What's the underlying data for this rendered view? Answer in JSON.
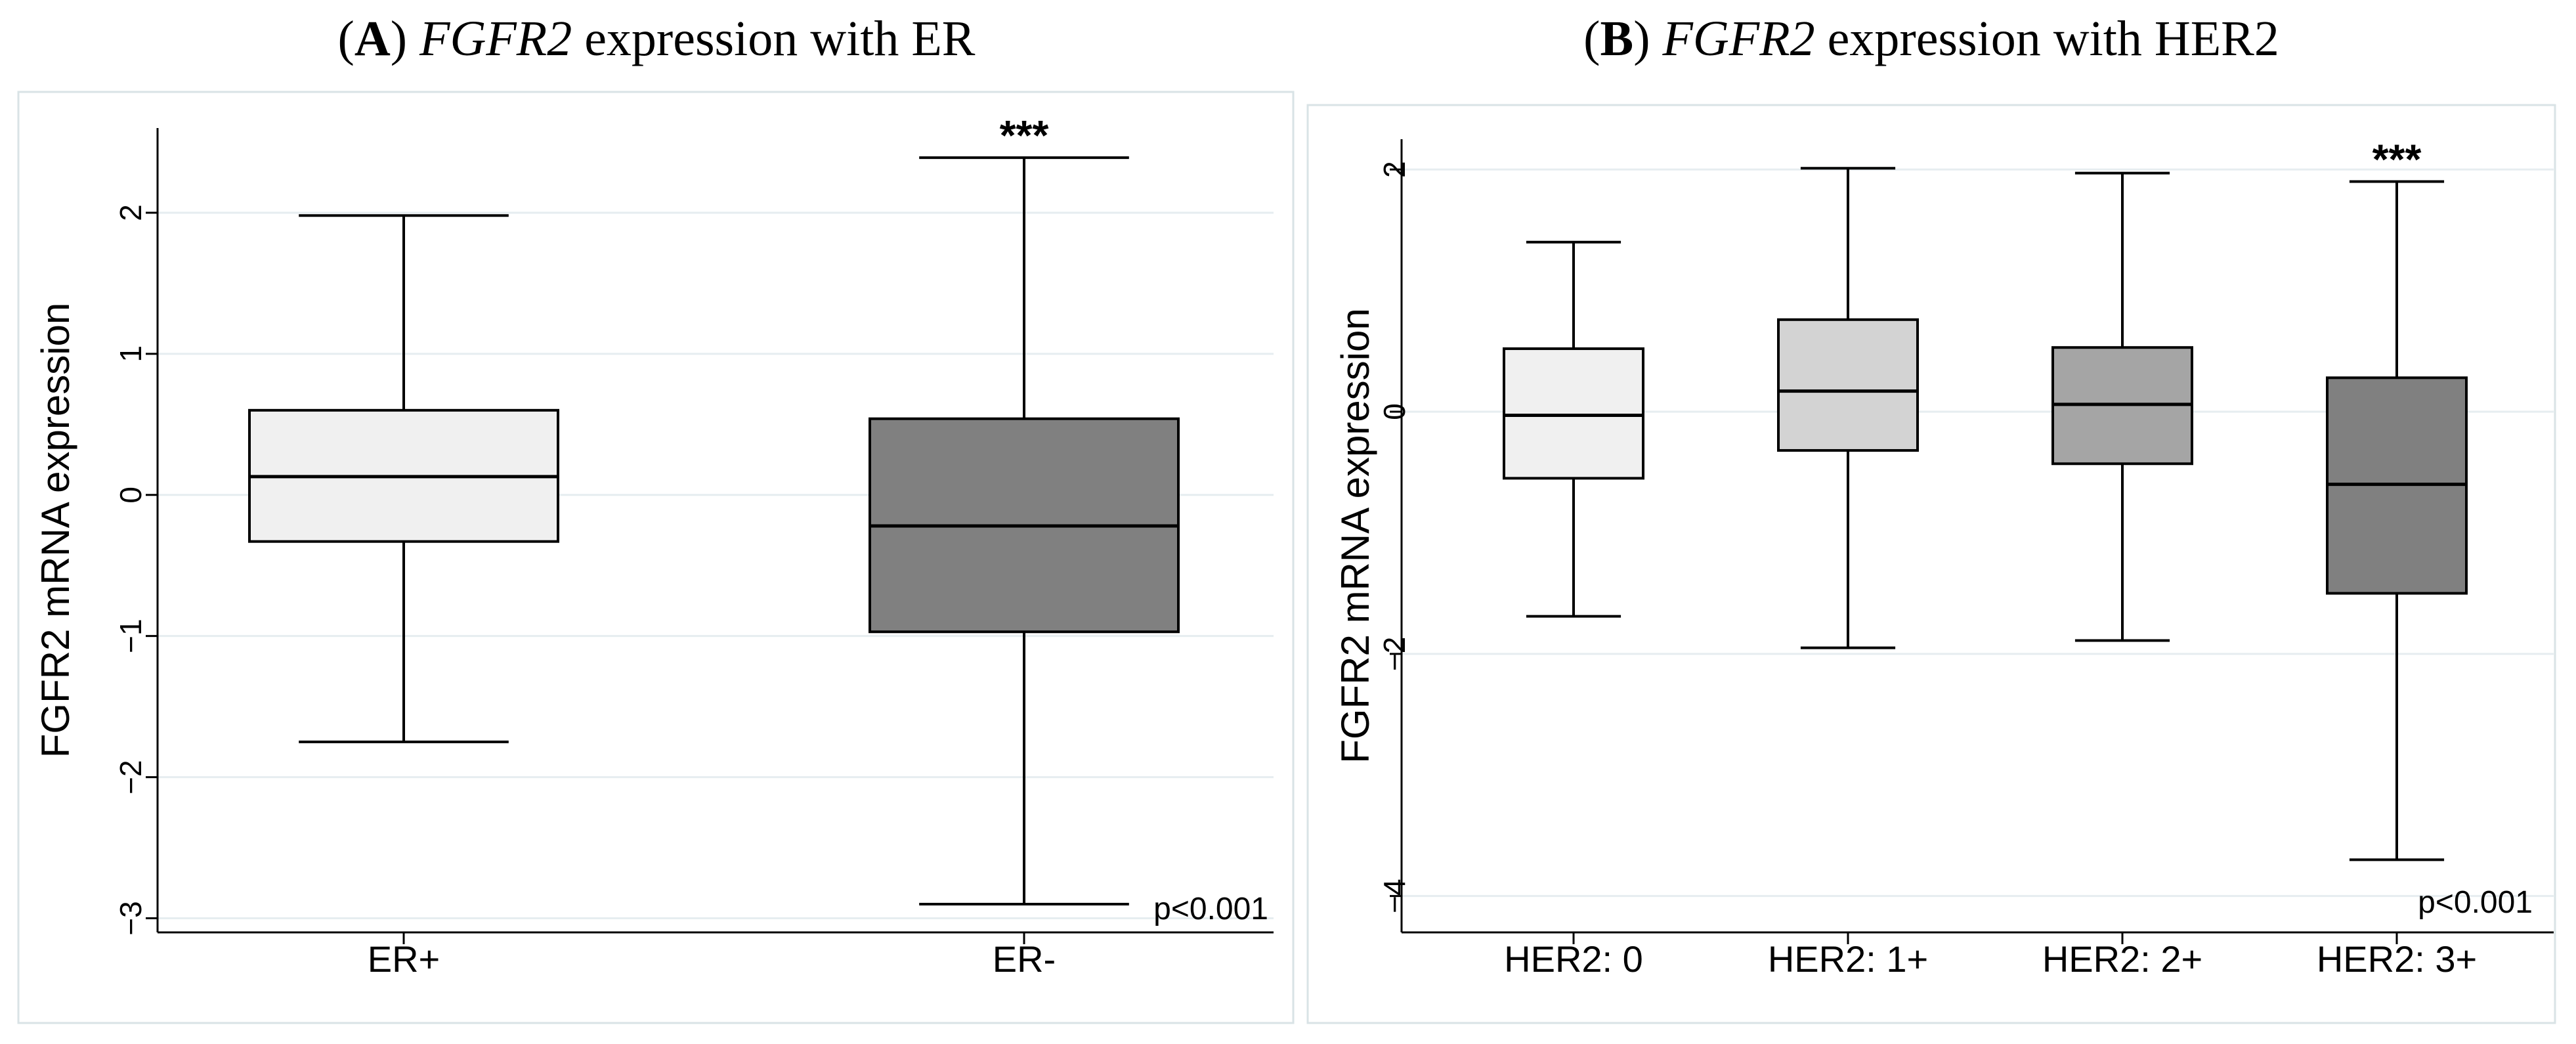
{
  "chart_data": [
    {
      "type": "boxplot",
      "panel_label": "A",
      "title_gene": "FGFR2",
      "title_rest": " expression with ER",
      "ylabel": "FGFR2 mRNA expression",
      "xlabel": "",
      "ylim": [
        -3.1,
        2.6
      ],
      "yticks": [
        2,
        1,
        0,
        -1,
        -2,
        -3
      ],
      "ytick_labels": [
        "2",
        "1",
        "0",
        "−1",
        "−2",
        "−3"
      ],
      "grid": true,
      "categories": [
        "ER+",
        "ER-"
      ],
      "boxes": [
        {
          "name": "ER+",
          "whisker_low": -1.75,
          "q1": -0.33,
          "median": 0.13,
          "q3": 0.6,
          "whisker_high": 1.98,
          "color": "#f0f0f0",
          "significance": ""
        },
        {
          "name": "ER-",
          "whisker_low": -2.9,
          "q1": -0.97,
          "median": -0.22,
          "q3": 0.54,
          "whisker_high": 2.39,
          "color": "#808080",
          "significance": "***"
        }
      ],
      "annotation": "p<0.001"
    },
    {
      "type": "boxplot",
      "panel_label": "B",
      "title_gene": "FGFR2",
      "title_rest": " expression with HER2",
      "ylabel": "FGFR2 mRNA expression",
      "xlabel": "",
      "ylim": [
        -4.3,
        2.25
      ],
      "yticks": [
        2,
        0,
        -2,
        -4
      ],
      "ytick_labels": [
        "2",
        "0",
        "−2",
        "−4"
      ],
      "grid": true,
      "categories": [
        "HER2: 0",
        "HER2: 1+",
        "HER2: 2+",
        "HER2: 3+"
      ],
      "boxes": [
        {
          "name": "HER2: 0",
          "whisker_low": -1.69,
          "q1": -0.55,
          "median": -0.03,
          "q3": 0.52,
          "whisker_high": 1.4,
          "color": "#f0f0f0",
          "significance": ""
        },
        {
          "name": "HER2: 1+",
          "whisker_low": -1.95,
          "q1": -0.32,
          "median": 0.17,
          "q3": 0.76,
          "whisker_high": 2.01,
          "color": "#d3d3d3",
          "significance": ""
        },
        {
          "name": "HER2: 2+",
          "whisker_low": -1.89,
          "q1": -0.43,
          "median": 0.06,
          "q3": 0.53,
          "whisker_high": 1.97,
          "color": "#a5a5a5",
          "significance": ""
        },
        {
          "name": "HER2: 3+",
          "whisker_low": -3.7,
          "q1": -1.5,
          "median": -0.6,
          "q3": 0.28,
          "whisker_high": 1.9,
          "color": "#808080",
          "significance": "***"
        }
      ],
      "annotation": "p<0.001"
    }
  ]
}
